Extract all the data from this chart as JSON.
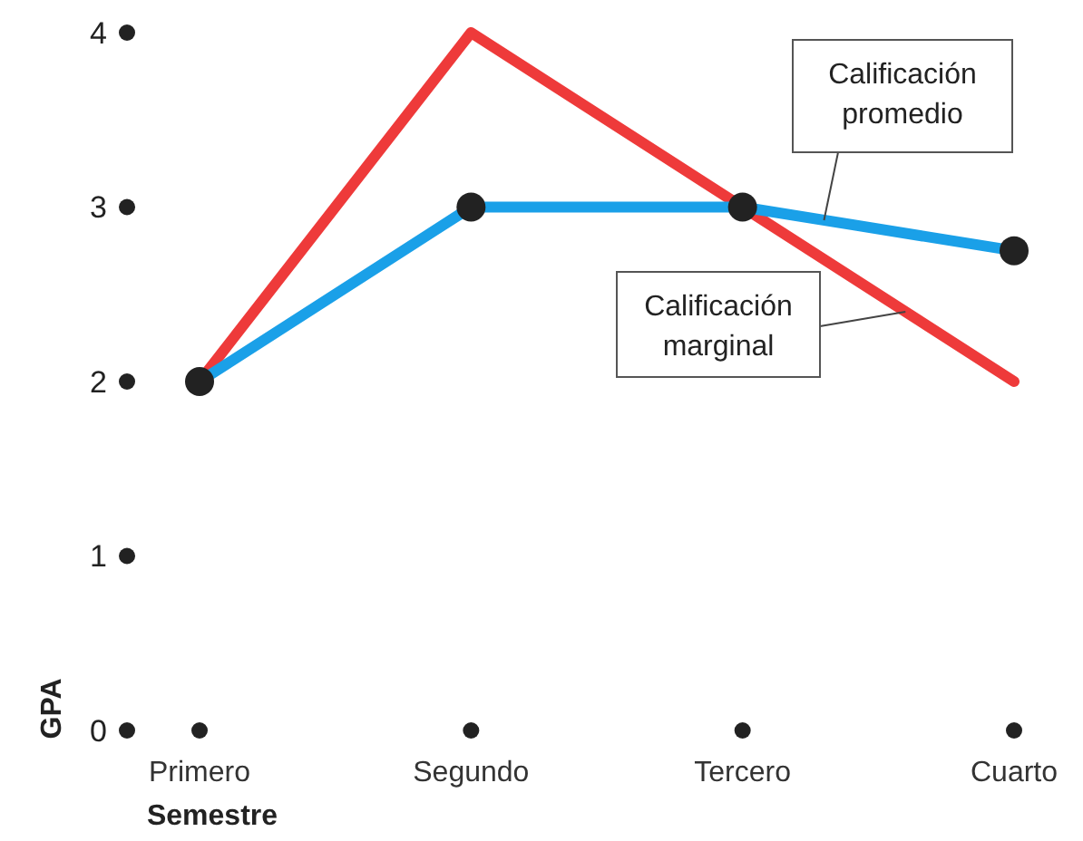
{
  "chart_data": {
    "type": "line",
    "xlabel": "Semestre",
    "ylabel": "GPA",
    "categories": [
      "Primero",
      "Segundo",
      "Tercero",
      "Cuarto"
    ],
    "ylim": [
      0,
      4
    ],
    "yticks": [
      0,
      1,
      2,
      3,
      4
    ],
    "grid": false,
    "legend": false,
    "series": [
      {
        "name": "Calificación marginal",
        "color": "#ee3a3a",
        "values": [
          2,
          4,
          3,
          2
        ]
      },
      {
        "name": "Calificación promedio",
        "color": "#1aa0e8",
        "values": [
          2,
          3,
          3,
          2.75
        ],
        "marker": "circle"
      }
    ]
  }
}
